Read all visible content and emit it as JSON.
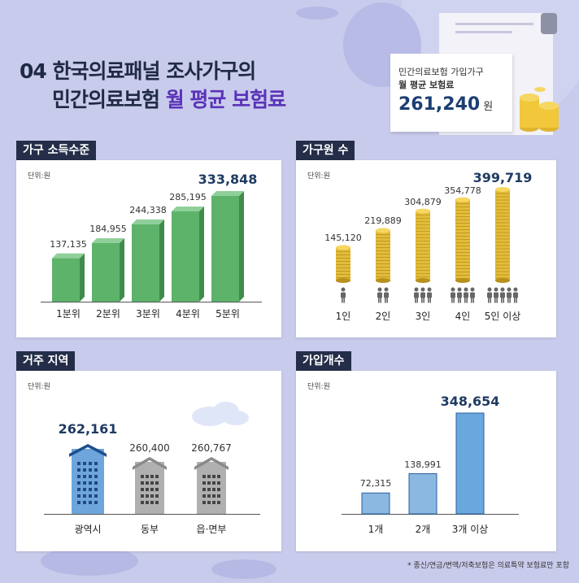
{
  "title": {
    "line1": "04 한국의료패널 조사가구의",
    "line2_prefix": "민간의료보험 ",
    "line2_highlight": "월 평균 보험료"
  },
  "summary": {
    "label_line1": "민간의료보험 가입가구",
    "label_line2": "월 평균 보험료",
    "value": "261,240",
    "unit": "원"
  },
  "colors": {
    "background": "#c9cbec",
    "tag": "#242e49",
    "green_bar": "#5db36a",
    "coin": "#e3bc3a",
    "region_blue": "#6ea6dc",
    "region_gray": "#b0b0b0",
    "count_bar": "#8ab8e0",
    "count_bar_max": "#6aa7dd"
  },
  "footnote": "* 종신/연금/변액/저축보험은 의료특약 보험료만 포함",
  "chart_data": [
    {
      "id": "income",
      "type": "bar",
      "title": "가구 소득수준",
      "unit_label": "단위:원",
      "categories": [
        "1분위",
        "2분위",
        "3분위",
        "4분위",
        "5분위"
      ],
      "values": [
        137135,
        184955,
        244338,
        285195,
        333848
      ],
      "labels": [
        "137,135",
        "184,955",
        "244,338",
        "285,195",
        "333,848"
      ],
      "ylim": [
        0,
        333848
      ]
    },
    {
      "id": "household",
      "type": "bar",
      "title": "가구원 수",
      "unit_label": "단위:원",
      "categories": [
        "1인",
        "2인",
        "3인",
        "4인",
        "5인 이상"
      ],
      "persons": [
        1,
        2,
        3,
        4,
        5
      ],
      "values": [
        145120,
        219889,
        304879,
        354778,
        399719
      ],
      "labels": [
        "145,120",
        "219,889",
        "304,879",
        "354,778",
        "399,719"
      ],
      "ylim": [
        0,
        399719
      ]
    },
    {
      "id": "region",
      "type": "bar",
      "title": "거주 지역",
      "unit_label": "단위:원",
      "categories": [
        "광역시",
        "동부",
        "읍·면부"
      ],
      "values": [
        262161,
        260400,
        260767
      ],
      "labels": [
        "262,161",
        "260,400",
        "260,767"
      ]
    },
    {
      "id": "policies",
      "type": "bar",
      "title": "가입개수",
      "unit_label": "단위:원",
      "categories": [
        "1개",
        "2개",
        "3개 이상"
      ],
      "values": [
        72315,
        138991,
        348654
      ],
      "labels": [
        "72,315",
        "138,991",
        "348,654"
      ],
      "ylim": [
        0,
        348654
      ]
    }
  ]
}
